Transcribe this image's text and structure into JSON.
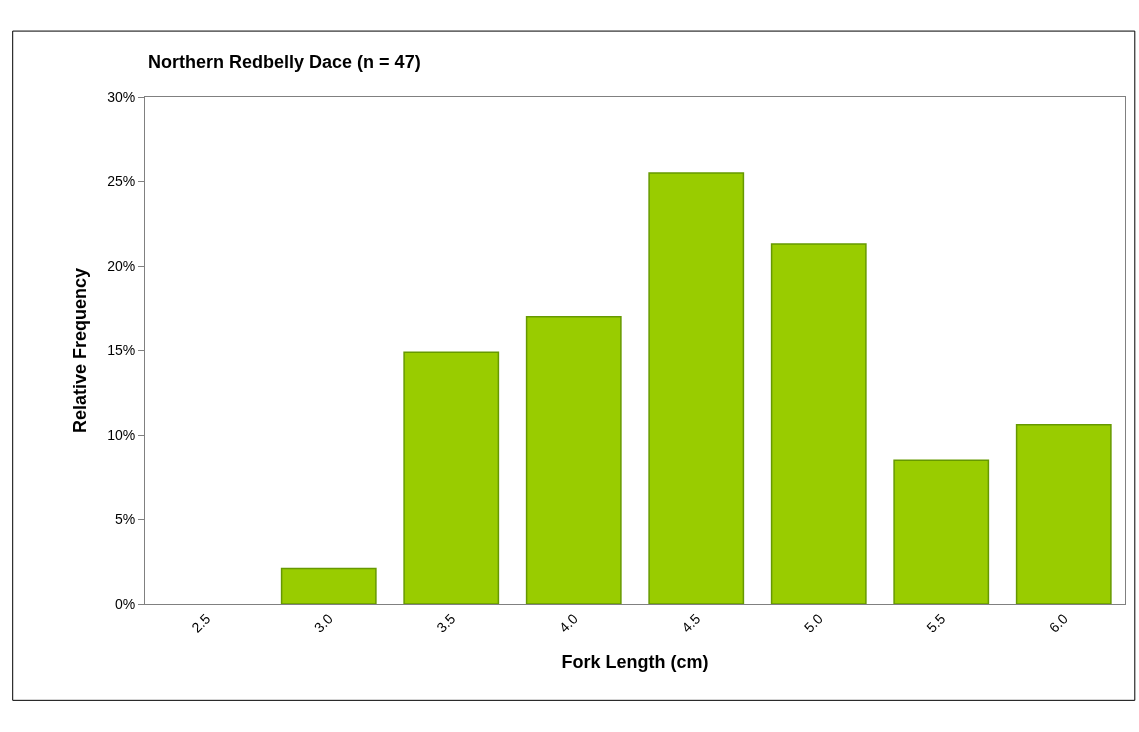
{
  "chart_data": {
    "type": "bar",
    "title": "Northern Redbelly Dace (n = 47)",
    "xlabel": "Fork Length (cm)",
    "ylabel": "Relative Frequency",
    "categories": [
      "2.5",
      "3.0",
      "3.5",
      "4.0",
      "4.5",
      "5.0",
      "5.5",
      "6.0"
    ],
    "values": [
      0,
      2.1,
      14.9,
      17.0,
      25.5,
      21.3,
      8.5,
      10.6
    ],
    "color": "#99cc00",
    "ylim": [
      0,
      30
    ],
    "yticks": [
      {
        "value": 0,
        "label": "0%"
      },
      {
        "value": 5,
        "label": "5%"
      },
      {
        "value": 10,
        "label": "10%"
      },
      {
        "value": 15,
        "label": "15%"
      },
      {
        "value": 20,
        "label": "20%"
      },
      {
        "value": 25,
        "label": "25%"
      },
      {
        "value": 30,
        "label": "30%"
      }
    ],
    "grid": false,
    "legend": false
  }
}
